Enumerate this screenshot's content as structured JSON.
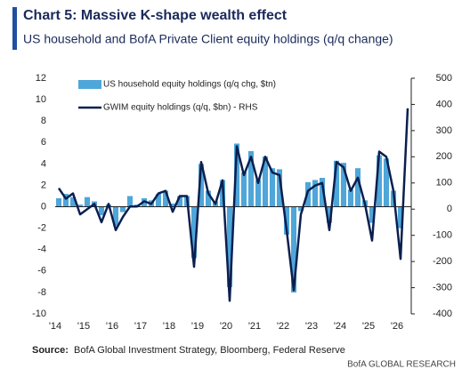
{
  "chart_data": {
    "type": "combo",
    "title": "Chart 5: Massive K-shape wealth effect",
    "subtitle": "US household and BofA Private Client equity holdings (q/q change)",
    "categories": [
      "'14",
      null,
      null,
      null,
      "'15",
      null,
      null,
      null,
      "'16",
      null,
      null,
      null,
      "'17",
      null,
      null,
      null,
      "'18",
      null,
      null,
      null,
      "'19",
      null,
      null,
      null,
      "'20",
      null,
      null,
      null,
      "'21",
      null,
      null,
      null,
      "'22",
      null,
      null,
      null,
      "'23",
      null,
      null,
      null,
      "'24",
      null,
      null,
      null,
      "'25",
      null,
      null,
      null,
      "'26",
      null
    ],
    "series": [
      {
        "name": "US household equity holdings (q/q chg, $tn)",
        "type": "bar",
        "color": "#4ea6d9",
        "values": [
          0.8,
          1.2,
          0.9,
          0.2,
          0.9,
          0.5,
          -0.8,
          0.2,
          -1.8,
          -0.5,
          1.0,
          0.2,
          0.8,
          0.6,
          1.2,
          1.5,
          0.3,
          1.0,
          1.0,
          -4.8,
          4.0,
          1.5,
          0.5,
          2.5,
          -7.5,
          5.9,
          3.2,
          5.2,
          2.5,
          4.7,
          3.6,
          3.5,
          -2.6,
          -8.0,
          -0.4,
          2.3,
          2.5,
          2.7,
          -1.5,
          4.3,
          4.1,
          1.6,
          3.6,
          0.6,
          -1.5,
          4.8,
          4.5,
          1.5,
          -2.0,
          null
        ]
      },
      {
        "name": "GWIM equity holdings (q/q, $bn) - RHS",
        "type": "line",
        "axis": "y2",
        "color": "#0b1f4f",
        "values": [
          80,
          40,
          60,
          -20,
          0,
          20,
          -50,
          20,
          -80,
          -30,
          10,
          10,
          30,
          20,
          60,
          70,
          -10,
          50,
          50,
          -220,
          180,
          60,
          20,
          110,
          -350,
          240,
          130,
          200,
          100,
          200,
          140,
          130,
          -80,
          -310,
          -20,
          70,
          90,
          100,
          -80,
          180,
          160,
          70,
          120,
          20,
          -120,
          220,
          200,
          70,
          -190,
          385
        ]
      }
    ],
    "ylim": [
      -10,
      12
    ],
    "yticks": [
      -10,
      -8,
      -6,
      -4,
      -2,
      0,
      2,
      4,
      6,
      8,
      10,
      12
    ],
    "y2lim": [
      -400,
      500
    ],
    "y2ticks": [
      -400,
      -300,
      -200,
      -100,
      0,
      100,
      200,
      300,
      400,
      500
    ],
    "source_label": "Source:",
    "source": "BofA Global Investment Strategy, Bloomberg, Federal Reserve",
    "brand": "BofA GLOBAL RESEARCH"
  }
}
